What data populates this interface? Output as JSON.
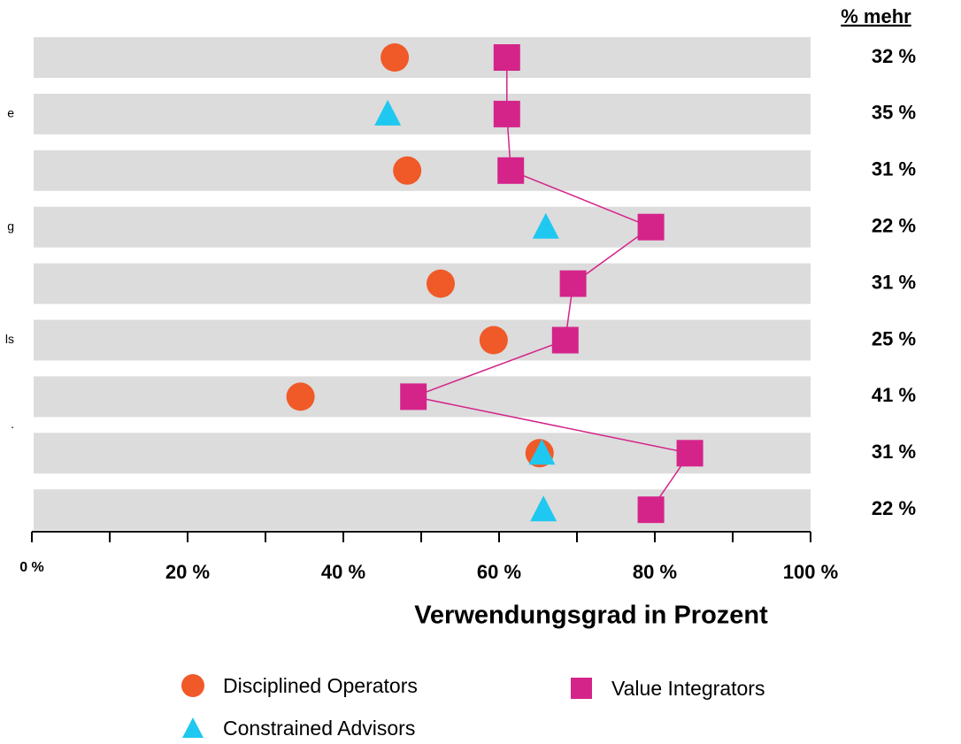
{
  "chart_data": {
    "type": "dot",
    "categories": [
      null,
      "e",
      null,
      "g",
      null,
      "ls",
      ".",
      null,
      null
    ],
    "series": [
      {
        "name": "Disciplined Operators",
        "color": "#f05a28",
        "marker": "circle",
        "values": [
          46.6,
          null,
          48.2,
          null,
          52.5,
          59.3,
          34.5,
          65.2,
          null
        ]
      },
      {
        "name": "Constrained Advisors",
        "color": "#1ec8f0",
        "marker": "triangle",
        "values": [
          null,
          45.7,
          null,
          66,
          null,
          null,
          null,
          65.5,
          65.7
        ]
      },
      {
        "name": "Value Integrators",
        "color": "#d4248a",
        "marker": "square",
        "line": true,
        "values": [
          61,
          61,
          61.5,
          79.5,
          69.5,
          68.5,
          49,
          84.5,
          79.5
        ]
      }
    ],
    "right_header": "% mehr",
    "right_labels": [
      "32 %",
      "35 %",
      "31 %",
      "22 %",
      "31 %",
      "25 %",
      "41 %",
      "31 %",
      "22 %"
    ],
    "xlabel": "Verwendungsgrad in Prozent",
    "xlim": [
      0,
      100
    ],
    "xticks": [
      {
        "value": 0,
        "label": "0 %"
      },
      {
        "value": 20,
        "label": "20 %"
      },
      {
        "value": 40,
        "label": "40 %"
      },
      {
        "value": 60,
        "label": "60 %"
      },
      {
        "value": 80,
        "label": "80 %"
      },
      {
        "value": 100,
        "label": "100 %"
      }
    ],
    "xminorticks": [
      10,
      30,
      50,
      70,
      90
    ],
    "band_color": "#dcdcdc"
  }
}
